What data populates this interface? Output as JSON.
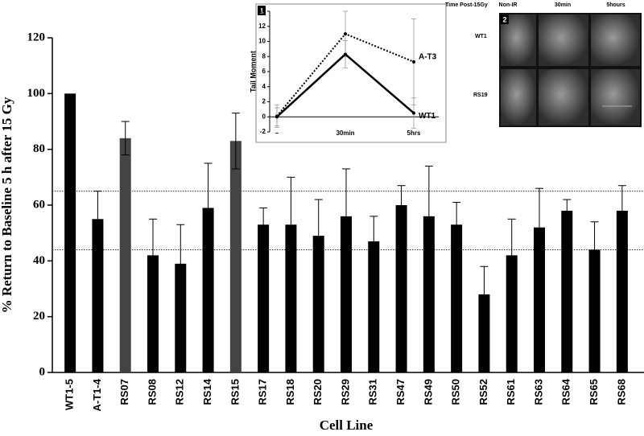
{
  "chart_data": [
    {
      "type": "bar",
      "y_label": "% Return to Baseline 5 h after 15 Gy",
      "x_label": "Cell Line",
      "categories": [
        "WT1-5",
        "A-T1-4",
        "RS07",
        "RS08",
        "RS12",
        "RS14",
        "RS15",
        "RS17",
        "RS18",
        "RS20",
        "RS29",
        "RS31",
        "RS47",
        "RS49",
        "RS50",
        "RS52",
        "RS61",
        "RS63",
        "RS64",
        "RS65",
        "RS68"
      ],
      "values": [
        100,
        55,
        84,
        42,
        39,
        59,
        83,
        53,
        53,
        49,
        56,
        47,
        60,
        56,
        53,
        28,
        42,
        52,
        58,
        44,
        58
      ],
      "errors": [
        null,
        10,
        6,
        13,
        14,
        16,
        10,
        6,
        17,
        13,
        17,
        9,
        7,
        18,
        8,
        10,
        13,
        14,
        4,
        10,
        9
      ],
      "colors": [
        "#000000",
        "#000000",
        "#444444",
        "#000000",
        "#000000",
        "#000000",
        "#444444",
        "#000000",
        "#000000",
        "#000000",
        "#000000",
        "#000000",
        "#000000",
        "#000000",
        "#000000",
        "#000000",
        "#000000",
        "#000000",
        "#000000",
        "#000000",
        "#000000"
      ],
      "ylim": [
        0,
        120
      ],
      "yticks": [
        0,
        20,
        40,
        60,
        80,
        100,
        120
      ],
      "reference_lines": [
        65,
        44
      ]
    },
    {
      "type": "line",
      "panel": "1",
      "y_label": "Tail Moment",
      "categories": [
        "–",
        "30min",
        "5hrs"
      ],
      "series": [
        {
          "name": "A-T3",
          "color": "#000000",
          "dash": true,
          "values": [
            0.1,
            11,
            7.3
          ],
          "errors": [
            1.5,
            3,
            5.7
          ]
        },
        {
          "name": "WT1",
          "color": "#000000",
          "dash": false,
          "values": [
            0,
            8.3,
            0.5
          ],
          "errors": [
            1.2,
            1.8,
            2
          ]
        }
      ],
      "ylim": [
        -2,
        14
      ],
      "yticks": [
        -2,
        0,
        2,
        4,
        6,
        8,
        10,
        12,
        14
      ]
    }
  ],
  "image_panel": {
    "panel": "2",
    "title": "Time Post-15Gy",
    "columns": [
      "Non-IR",
      "30min",
      "5hours"
    ],
    "rows": [
      "WT1",
      "RS19"
    ]
  }
}
